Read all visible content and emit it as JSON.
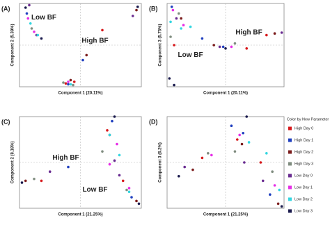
{
  "chart_data": [
    {
      "type": "scatter",
      "panel": "(A)",
      "xlabel": "Component 1 (20.11%)",
      "ylabel": "Component 2 (5.39%)",
      "xlim": [
        0,
        100
      ],
      "ylim": [
        0,
        100
      ],
      "annotations": [
        {
          "text": "Low BF",
          "x": 20,
          "y": 83
        },
        {
          "text": "High BF",
          "x": 62,
          "y": 55
        }
      ],
      "series": [
        {
          "x": [
            45,
            38,
            68
          ],
          "values": [
            6,
            4,
            68
          ]
        },
        {
          "x": [
            6,
            52,
            40
          ],
          "values": [
            88,
            32,
            3
          ]
        },
        {
          "x": [
            55,
            42,
            96
          ],
          "values": [
            38,
            8,
            92
          ]
        },
        {
          "x": [
            10,
            36,
            44
          ],
          "values": [
            70,
            5,
            2
          ]
        },
        {
          "x": [
            8,
            14,
            93
          ],
          "values": [
            98,
            62,
            85
          ]
        },
        {
          "x": [
            7,
            12,
            40
          ],
          "values": [
            82,
            66,
            6
          ]
        },
        {
          "x": [
            9,
            15,
            42
          ],
          "values": [
            76,
            62,
            3
          ]
        },
        {
          "x": [
            5,
            18,
            97
          ],
          "values": [
            95,
            58,
            96
          ]
        }
      ]
    },
    {
      "type": "scatter",
      "panel": "(B)",
      "xlabel": "Component 1 (20.11%)",
      "ylabel": "Component 3 (5.75%)",
      "xlim": [
        0,
        100
      ],
      "ylim": [
        0,
        100
      ],
      "annotations": [
        {
          "text": "High BF",
          "x": 70,
          "y": 65
        },
        {
          "text": "Low BF",
          "x": 20,
          "y": 38
        }
      ],
      "series": [
        {
          "x": [
            6,
            68,
            85
          ],
          "values": [
            50,
            46,
            62
          ]
        },
        {
          "x": [
            4,
            30,
            48
          ],
          "values": [
            96,
            58,
            48
          ]
        },
        {
          "x": [
            40,
            92,
            12
          ],
          "values": [
            50,
            64,
            82
          ]
        },
        {
          "x": [
            10,
            58,
            3
          ],
          "values": [
            88,
            52,
            60
          ]
        },
        {
          "x": [
            8,
            98,
            45
          ],
          "values": [
            82,
            65,
            48
          ]
        },
        {
          "x": [
            5,
            55,
            14
          ],
          "values": [
            92,
            48,
            74
          ]
        },
        {
          "x": [
            3,
            20,
            12
          ],
          "values": [
            78,
            72,
            70
          ]
        },
        {
          "x": [
            2,
            6,
            50
          ],
          "values": [
            10,
            2,
            46
          ]
        }
      ]
    },
    {
      "type": "scatter",
      "panel": "(C)",
      "xlabel": "Component 1 (21.25%)",
      "ylabel": "Component 2 (8.18%)",
      "xlim": [
        0,
        100
      ],
      "ylim": [
        0,
        100
      ],
      "annotations": [
        {
          "text": "High BF",
          "x": 38,
          "y": 55
        },
        {
          "text": "Low BF",
          "x": 62,
          "y": 20
        }
      ],
      "series": [
        {
          "x": [
            72,
            18,
            85
          ],
          "values": [
            85,
            30,
            30
          ]
        },
        {
          "x": [
            76,
            40,
            92
          ],
          "values": [
            95,
            45,
            12
          ]
        },
        {
          "x": [
            5,
            74,
            96
          ],
          "values": [
            30,
            80,
            8
          ]
        },
        {
          "x": [
            12,
            68,
            88
          ],
          "values": [
            32,
            62,
            20
          ]
        },
        {
          "x": [
            25,
            78,
            82
          ],
          "values": [
            40,
            52,
            36
          ]
        },
        {
          "x": [
            80,
            90,
            74
          ],
          "values": [
            70,
            22,
            48
          ]
        },
        {
          "x": [
            82,
            74,
            90
          ],
          "values": [
            58,
            80,
            18
          ]
        },
        {
          "x": [
            2,
            78,
            98
          ],
          "values": [
            28,
            100,
            5
          ]
        }
      ]
    },
    {
      "type": "scatter",
      "panel": "(D)",
      "xlabel": "Component 1 (21.25%)",
      "ylabel": "Component 3 (6.2%)",
      "xlim": [
        0,
        100
      ],
      "ylim": [
        0,
        100
      ],
      "annotations": [],
      "series": [
        {
          "x": [
            60,
            30,
            80
          ],
          "values": [
            75,
            55,
            50
          ]
        },
        {
          "x": [
            55,
            65,
            88
          ],
          "values": [
            90,
            82,
            15
          ]
        },
        {
          "x": [
            64,
            22,
            95
          ],
          "values": [
            70,
            42,
            5
          ]
        },
        {
          "x": [
            58,
            35,
            90
          ],
          "values": [
            62,
            60,
            40
          ]
        },
        {
          "x": [
            66,
            15,
            82
          ],
          "values": [
            50,
            45,
            30
          ]
        },
        {
          "x": [
            62,
            38,
            92
          ],
          "values": [
            80,
            58,
            25
          ]
        },
        {
          "x": [
            70,
            85,
            96
          ],
          "values": [
            72,
            60,
            20
          ]
        },
        {
          "x": [
            68,
            10,
            98
          ],
          "values": [
            100,
            35,
            2
          ]
        }
      ]
    }
  ],
  "legend": {
    "title": "Color by New Parameter",
    "items": [
      {
        "name": "High Day 0",
        "color": "#d7191c"
      },
      {
        "name": "High Day 1",
        "color": "#1f3fbf"
      },
      {
        "name": "High Day 2",
        "color": "#7b1c1c"
      },
      {
        "name": "High Day 3",
        "color": "#7f8c7f"
      },
      {
        "name": "Low Day 0",
        "color": "#6a2c91"
      },
      {
        "name": "Low Day 1",
        "color": "#e62ee6"
      },
      {
        "name": "Low Day 2",
        "color": "#33d6e0"
      },
      {
        "name": "Low Day 3",
        "color": "#1a1a4d"
      }
    ]
  }
}
